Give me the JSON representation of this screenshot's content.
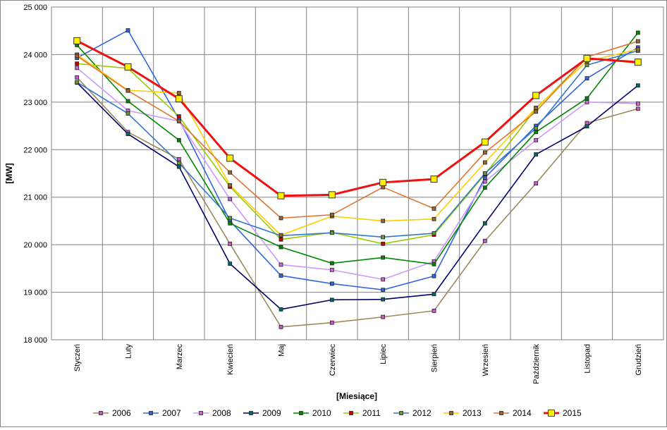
{
  "chart_data": {
    "type": "line",
    "title": "",
    "xlabel": "[Miesiące]",
    "ylabel": "[MW]",
    "ylim": [
      18000,
      25000
    ],
    "yticks": [
      18000,
      19000,
      20000,
      21000,
      22000,
      23000,
      24000,
      25000
    ],
    "ytick_labels": [
      "18 000",
      "19 000",
      "20 000",
      "21 000",
      "22 000",
      "23 000",
      "24 000",
      "25 000"
    ],
    "grid": true,
    "legend_position": "bottom",
    "categories": [
      "Styczeń",
      "Luty",
      "Marzec",
      "Kwiecień",
      "Maj",
      "Czerwiec",
      "Lipiec",
      "Sierpień",
      "Wrzesień",
      "Październik",
      "Listopad",
      "Grudzień"
    ],
    "series": [
      {
        "name": "2006",
        "color": "#9c8a5c",
        "marker": "#cc55cc",
        "values": [
          23520,
          22370,
          21800,
          20020,
          18270,
          18360,
          18480,
          18610,
          20080,
          21290,
          22560,
          22860
        ]
      },
      {
        "name": "2007",
        "color": "#3366dd",
        "marker": "#3366dd",
        "values": [
          23930,
          24510,
          22640,
          20500,
          19350,
          19180,
          19050,
          19340,
          21410,
          22500,
          23500,
          24150
        ]
      },
      {
        "name": "2008",
        "color": "#cc99ff",
        "marker": "#cc66cc",
        "values": [
          23720,
          22820,
          22600,
          20960,
          19580,
          19470,
          19270,
          19650,
          21330,
          22200,
          23000,
          22970
        ]
      },
      {
        "name": "2009",
        "color": "#000066",
        "marker": "#006666",
        "values": [
          23410,
          22330,
          21640,
          19600,
          18640,
          18840,
          18850,
          18960,
          20450,
          21900,
          22490,
          23350
        ]
      },
      {
        "name": "2010",
        "color": "#008800",
        "marker": "#008800",
        "values": [
          24200,
          23020,
          22200,
          20450,
          19950,
          19610,
          19730,
          19590,
          21200,
          22370,
          23080,
          24460
        ]
      },
      {
        "name": "2011",
        "color": "#99cc00",
        "marker": "#cc0000",
        "values": [
          23810,
          23710,
          22700,
          21220,
          20110,
          20260,
          20020,
          20210,
          21480,
          22860,
          23930,
          23820
        ]
      },
      {
        "name": "2012",
        "color": "#3377cc",
        "marker": "#669933",
        "values": [
          23420,
          22760,
          21720,
          20560,
          20190,
          20250,
          20160,
          20240,
          21500,
          22450,
          23780,
          24080
        ]
      },
      {
        "name": "2013",
        "color": "#ffcc00",
        "marker": "#996633",
        "values": [
          24000,
          23250,
          23190,
          21250,
          20200,
          20600,
          20500,
          20540,
          21730,
          22880,
          23860,
          24110
        ]
      },
      {
        "name": "2014",
        "color": "#dd7733",
        "marker": "#996633",
        "values": [
          23970,
          23240,
          22600,
          21520,
          20560,
          20630,
          21210,
          20760,
          21940,
          22800,
          23950,
          24280
        ]
      },
      {
        "name": "2015",
        "color": "#ee1111",
        "marker": "#ffee00",
        "values": [
          24290,
          23740,
          23070,
          21820,
          21030,
          21050,
          21310,
          21380,
          22160,
          23140,
          23920,
          23840
        ]
      }
    ]
  }
}
